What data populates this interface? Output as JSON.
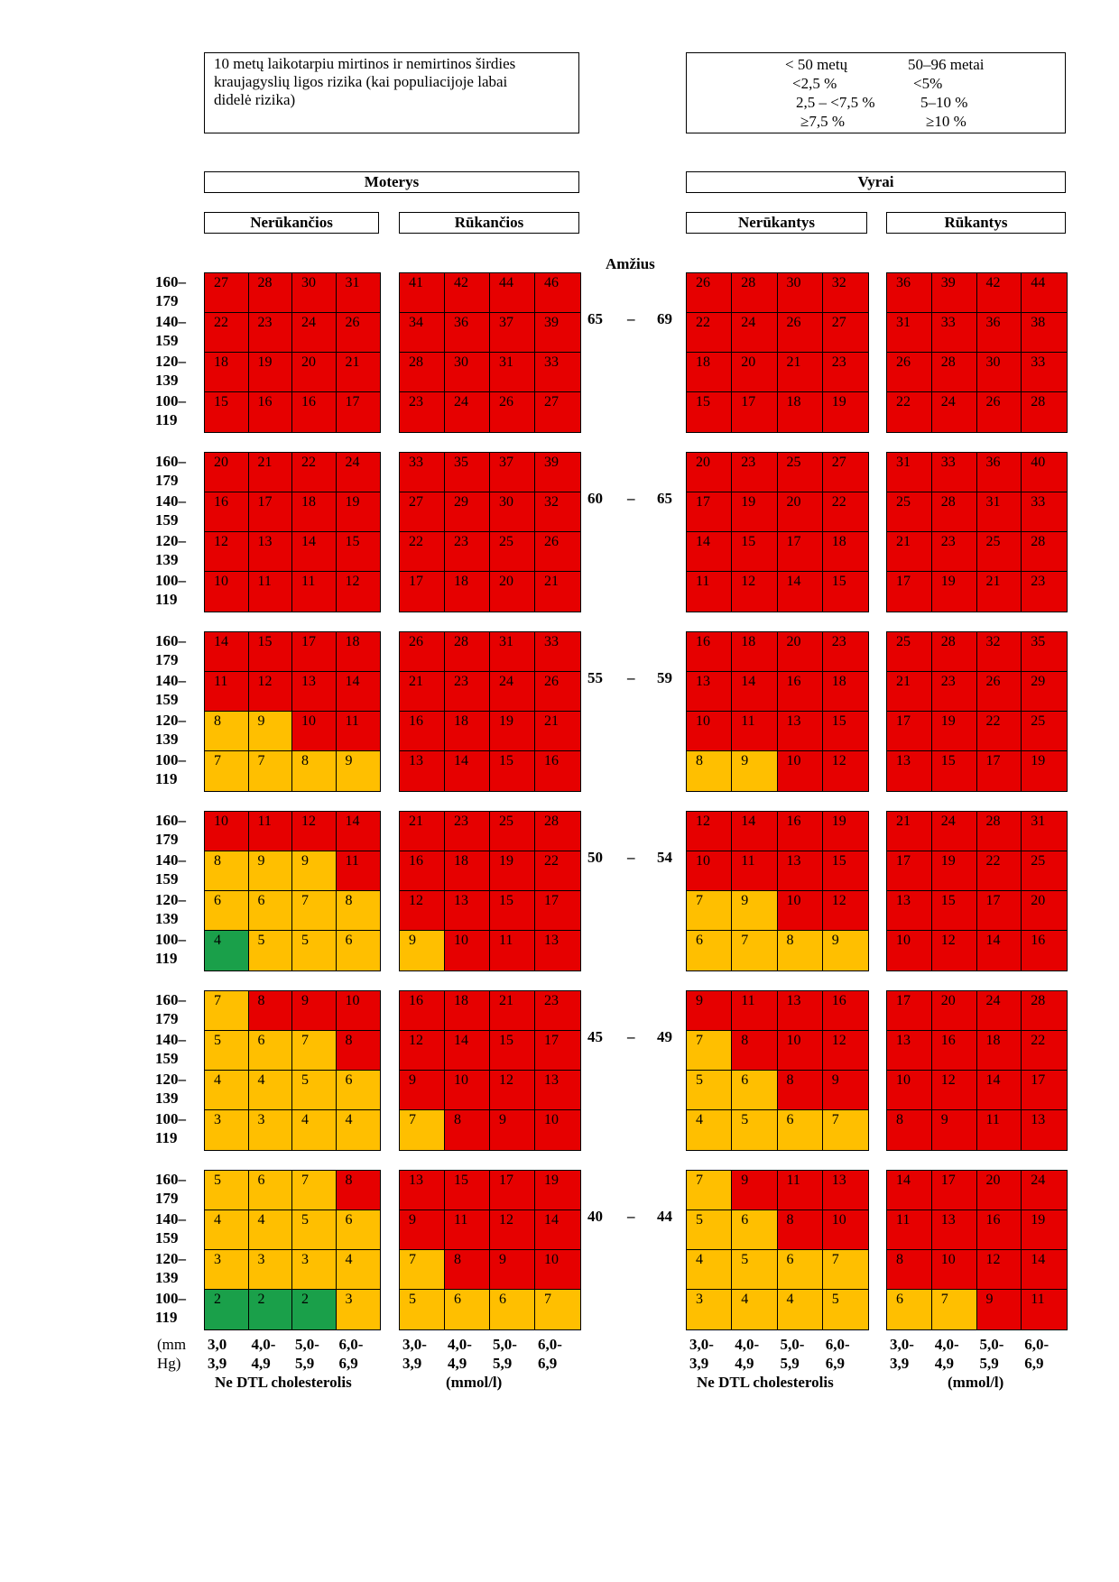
{
  "legend_left": {
    "lines": [
      "10 metų laikotarpiu mirtinos ir nemirtinos širdies",
      "kraujagyslių ligos  rizika (kai populiacijoje labai",
      "didelė rizika)"
    ]
  },
  "legend_right": {
    "col1_header": "< 50 metų",
    "col2_header": "50–96 metai",
    "rows": [
      {
        "c1": "<2,5 %",
        "c2": "<5%"
      },
      {
        "c1": "2,5 – <7,5 %",
        "c2": "5–10 %"
      },
      {
        "c1": "≥7,5 %",
        "c2": "≥10 %"
      }
    ]
  },
  "headers": {
    "women": "Moterys",
    "men": "Vyrai",
    "women_nonsmoking": "Nerūkančios",
    "women_smoking": "Rūkančios",
    "men_nonsmoking": "Nerūkantys",
    "men_smoking": "Rūkantys",
    "age": "Amžius"
  },
  "bp_labels": [
    [
      "160–",
      "179"
    ],
    [
      "140–",
      "159"
    ],
    [
      "120–",
      "139"
    ],
    [
      "100–",
      "119"
    ]
  ],
  "unit_label": [
    "(mm",
    "Hg)"
  ],
  "chol_labels_women_ns": [
    [
      "3,0",
      "3,9"
    ],
    [
      "4,0-",
      "4,9"
    ],
    [
      "5,0-",
      "5,9"
    ],
    [
      "6,0-",
      "6,9"
    ]
  ],
  "chol_labels": [
    [
      "3,0-",
      "3,9"
    ],
    [
      "4,0-",
      "4,9"
    ],
    [
      "5,0-",
      "5,9"
    ],
    [
      "6,0-",
      "6,9"
    ]
  ],
  "footer": {
    "chol_left": "Ne DTL cholesterolis",
    "unit_left": "(mmol/l)",
    "chol_right": "Ne DTL cholesterolis",
    "unit_right": "(mmol/l)"
  },
  "colors": {
    "low": "#1aa04a",
    "mid": "#ffbf00",
    "high": "#e60000"
  },
  "chart_data": {
    "type": "heatmap",
    "title": "10 metų laikotarpiu mirtinos ir nemirtinos širdies kraujagyslių ligos  rizika (kai populiacijoje labai didelė rizika)",
    "rows_label": "(mm Hg)",
    "cols_label": "Ne DTL cholesterolis (mmol/l)",
    "panels": [
      "Moterys – Nerūkančios",
      "Moterys – Rūkančios",
      "Vyrai – Nerūkantys",
      "Vyrai – Rūkantys"
    ],
    "age_groups": [
      {
        "age": [
          "65",
          "–",
          "69"
        ],
        "panels": [
          [
            [
              27,
              28,
              30,
              31
            ],
            [
              22,
              23,
              24,
              26
            ],
            [
              18,
              19,
              20,
              21
            ],
            [
              15,
              16,
              16,
              17
            ]
          ],
          [
            [
              41,
              42,
              44,
              46
            ],
            [
              34,
              36,
              37,
              39
            ],
            [
              28,
              30,
              31,
              33
            ],
            [
              23,
              24,
              26,
              27
            ]
          ],
          [
            [
              26,
              28,
              30,
              32
            ],
            [
              22,
              24,
              26,
              27
            ],
            [
              18,
              20,
              21,
              23
            ],
            [
              15,
              17,
              18,
              19
            ]
          ],
          [
            [
              36,
              39,
              42,
              44
            ],
            [
              31,
              33,
              36,
              38
            ],
            [
              26,
              28,
              30,
              33
            ],
            [
              22,
              24,
              26,
              28
            ]
          ]
        ]
      },
      {
        "age": [
          "60",
          "–",
          "65"
        ],
        "panels": [
          [
            [
              20,
              21,
              22,
              24
            ],
            [
              16,
              17,
              18,
              19
            ],
            [
              12,
              13,
              14,
              15
            ],
            [
              10,
              11,
              11,
              12
            ]
          ],
          [
            [
              33,
              35,
              37,
              39
            ],
            [
              27,
              29,
              30,
              32
            ],
            [
              22,
              23,
              25,
              26
            ],
            [
              17,
              18,
              20,
              21
            ]
          ],
          [
            [
              20,
              23,
              25,
              27
            ],
            [
              17,
              19,
              20,
              22
            ],
            [
              14,
              15,
              17,
              18
            ],
            [
              11,
              12,
              14,
              15
            ]
          ],
          [
            [
              31,
              33,
              36,
              40
            ],
            [
              25,
              28,
              31,
              33
            ],
            [
              21,
              23,
              25,
              28
            ],
            [
              17,
              19,
              21,
              23
            ]
          ]
        ]
      },
      {
        "age": [
          "55",
          "–",
          "59"
        ],
        "panels": [
          [
            [
              14,
              15,
              17,
              18
            ],
            [
              11,
              12,
              13,
              14
            ],
            [
              8,
              9,
              10,
              11
            ],
            [
              7,
              7,
              8,
              9
            ]
          ],
          [
            [
              26,
              28,
              31,
              33
            ],
            [
              21,
              23,
              24,
              26
            ],
            [
              16,
              18,
              19,
              21
            ],
            [
              13,
              14,
              15,
              16
            ]
          ],
          [
            [
              16,
              18,
              20,
              23
            ],
            [
              13,
              14,
              16,
              18
            ],
            [
              10,
              11,
              13,
              15
            ],
            [
              8,
              9,
              10,
              12
            ]
          ],
          [
            [
              25,
              28,
              32,
              35
            ],
            [
              21,
              23,
              26,
              29
            ],
            [
              17,
              19,
              22,
              25
            ],
            [
              13,
              15,
              17,
              19
            ]
          ]
        ]
      },
      {
        "age": [
          "50",
          "–",
          "54"
        ],
        "panels": [
          [
            [
              10,
              11,
              12,
              14
            ],
            [
              8,
              9,
              9,
              11
            ],
            [
              6,
              6,
              7,
              8
            ],
            [
              4,
              5,
              5,
              6
            ]
          ],
          [
            [
              21,
              23,
              25,
              28
            ],
            [
              16,
              18,
              19,
              22
            ],
            [
              12,
              13,
              15,
              17
            ],
            [
              9,
              10,
              11,
              13
            ]
          ],
          [
            [
              12,
              14,
              16,
              19
            ],
            [
              10,
              11,
              13,
              15
            ],
            [
              7,
              9,
              10,
              12
            ],
            [
              6,
              7,
              8,
              9
            ]
          ],
          [
            [
              21,
              24,
              28,
              31
            ],
            [
              17,
              19,
              22,
              25
            ],
            [
              13,
              15,
              17,
              20
            ],
            [
              10,
              12,
              14,
              16
            ]
          ]
        ]
      },
      {
        "age": [
          "45",
          "–",
          "49"
        ],
        "panels": [
          [
            [
              7,
              8,
              9,
              10
            ],
            [
              5,
              6,
              7,
              8
            ],
            [
              4,
              4,
              5,
              6
            ],
            [
              3,
              3,
              4,
              4
            ]
          ],
          [
            [
              16,
              18,
              21,
              23
            ],
            [
              12,
              14,
              15,
              17
            ],
            [
              9,
              10,
              12,
              13
            ],
            [
              7,
              8,
              9,
              10
            ]
          ],
          [
            [
              9,
              11,
              13,
              16
            ],
            [
              7,
              8,
              10,
              12
            ],
            [
              5,
              6,
              8,
              9
            ],
            [
              4,
              5,
              6,
              7
            ]
          ],
          [
            [
              17,
              20,
              24,
              28
            ],
            [
              13,
              16,
              18,
              22
            ],
            [
              10,
              12,
              14,
              17
            ],
            [
              8,
              9,
              11,
              13
            ]
          ]
        ]
      },
      {
        "age": [
          "40",
          "–",
          "44"
        ],
        "panels": [
          [
            [
              5,
              6,
              7,
              8
            ],
            [
              4,
              4,
              5,
              6
            ],
            [
              3,
              3,
              3,
              4
            ],
            [
              2,
              2,
              2,
              3
            ]
          ],
          [
            [
              13,
              15,
              17,
              19
            ],
            [
              9,
              11,
              12,
              14
            ],
            [
              7,
              8,
              9,
              10
            ],
            [
              5,
              6,
              6,
              7
            ]
          ],
          [
            [
              7,
              9,
              11,
              13
            ],
            [
              5,
              6,
              8,
              10
            ],
            [
              4,
              5,
              6,
              7
            ],
            [
              3,
              4,
              4,
              5
            ]
          ],
          [
            [
              14,
              17,
              20,
              24
            ],
            [
              11,
              13,
              16,
              19
            ],
            [
              8,
              10,
              12,
              14
            ],
            [
              6,
              7,
              9,
              11
            ]
          ]
        ]
      }
    ]
  }
}
